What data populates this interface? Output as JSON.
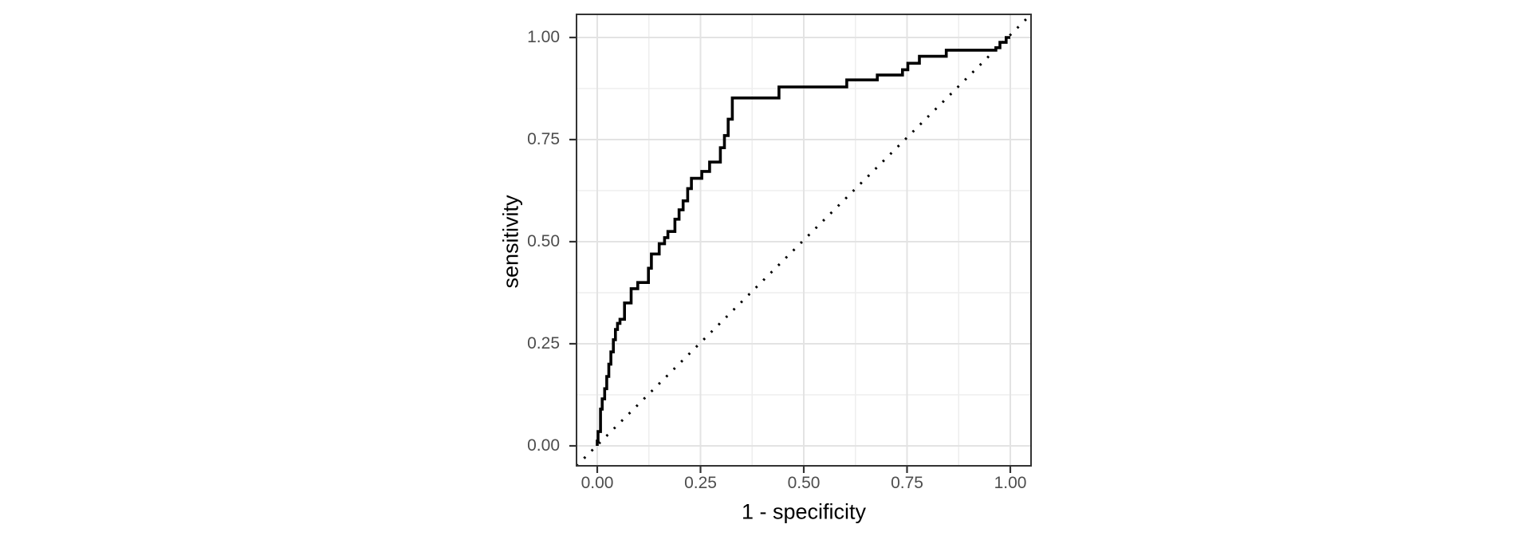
{
  "page": {
    "background": "#ffffff"
  },
  "chart_data": {
    "type": "line",
    "subtype": "roc-step-curve",
    "title": "",
    "xlabel": "1 - specificity",
    "ylabel": "sensitivity",
    "xlim": [
      0,
      1
    ],
    "ylim": [
      0,
      1
    ],
    "grid": "major-and-minor",
    "legend": "none",
    "x_ticks": {
      "values": [
        0,
        0.25,
        0.5,
        0.75,
        1
      ],
      "labels": [
        "0.00",
        "0.25",
        "0.50",
        "0.75",
        "1.00"
      ]
    },
    "y_ticks": {
      "values": [
        0,
        0.25,
        0.5,
        0.75,
        1
      ],
      "labels": [
        "0.00",
        "0.25",
        "0.50",
        "0.75",
        "1.00"
      ]
    },
    "x_minor_ticks": [
      0.125,
      0.375,
      0.625,
      0.875
    ],
    "y_minor_ticks": [
      0.125,
      0.375,
      0.625,
      0.875
    ],
    "colors": {
      "curve": "#000000",
      "diagonal": "#000000",
      "panel_border": "#333333",
      "tick_mark": "#333333",
      "grid_major": "#e3e3e3",
      "grid_minor": "#eeeeee",
      "tick_label": "#4d4d4d",
      "axis_title": "#000000",
      "panel_background": "#ffffff"
    },
    "series": [
      {
        "name": "roc_curve",
        "style": "solid-step",
        "points": [
          [
            0.0,
            0.0
          ],
          [
            0.002,
            0.012
          ],
          [
            0.008,
            0.035
          ],
          [
            0.012,
            0.09
          ],
          [
            0.018,
            0.115
          ],
          [
            0.023,
            0.14
          ],
          [
            0.028,
            0.17
          ],
          [
            0.033,
            0.2
          ],
          [
            0.039,
            0.23
          ],
          [
            0.044,
            0.26
          ],
          [
            0.049,
            0.285
          ],
          [
            0.055,
            0.3
          ],
          [
            0.066,
            0.31
          ],
          [
            0.082,
            0.35
          ],
          [
            0.098,
            0.385
          ],
          [
            0.124,
            0.4
          ],
          [
            0.131,
            0.435
          ],
          [
            0.15,
            0.47
          ],
          [
            0.163,
            0.495
          ],
          [
            0.171,
            0.51
          ],
          [
            0.188,
            0.525
          ],
          [
            0.198,
            0.555
          ],
          [
            0.208,
            0.578
          ],
          [
            0.219,
            0.6
          ],
          [
            0.228,
            0.63
          ],
          [
            0.253,
            0.655
          ],
          [
            0.272,
            0.672
          ],
          [
            0.298,
            0.695
          ],
          [
            0.308,
            0.73
          ],
          [
            0.317,
            0.76
          ],
          [
            0.327,
            0.8
          ],
          [
            0.334,
            0.852
          ],
          [
            0.44,
            0.852
          ],
          [
            0.44,
            0.879
          ],
          [
            0.604,
            0.879
          ],
          [
            0.604,
            0.896
          ],
          [
            0.678,
            0.896
          ],
          [
            0.678,
            0.908
          ],
          [
            0.739,
            0.908
          ],
          [
            0.739,
            0.921
          ],
          [
            0.752,
            0.921
          ],
          [
            0.752,
            0.937
          ],
          [
            0.78,
            0.937
          ],
          [
            0.78,
            0.954
          ],
          [
            0.845,
            0.954
          ],
          [
            0.845,
            0.969
          ],
          [
            0.965,
            0.969
          ],
          [
            0.965,
            0.975
          ],
          [
            0.975,
            0.975
          ],
          [
            0.975,
            0.988
          ],
          [
            0.99,
            0.988
          ],
          [
            0.99,
            1.0
          ],
          [
            1.0,
            1.0
          ]
        ]
      },
      {
        "name": "chance_diagonal",
        "style": "dotted",
        "points": [
          [
            0,
            0
          ],
          [
            1,
            1
          ]
        ],
        "extends_to_panel_corners": true
      }
    ]
  }
}
